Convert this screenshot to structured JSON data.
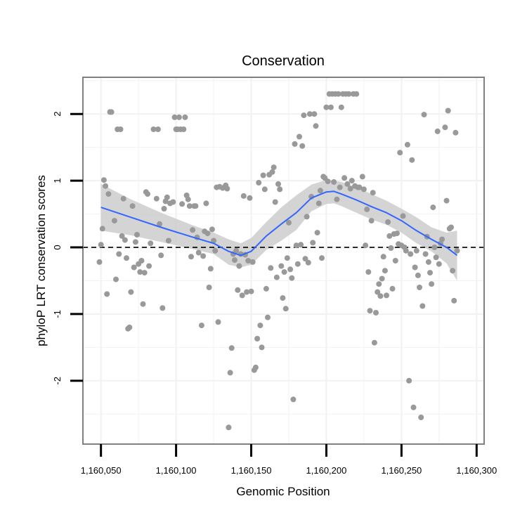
{
  "chart_data": {
    "type": "scatter",
    "title": "Conservation",
    "xlabel": "Genomic Position",
    "ylabel": "phyloP LRT conservation scores",
    "xlim": [
      1160038,
      1160305
    ],
    "ylim": [
      -2.95,
      2.55
    ],
    "x_ticks": [
      {
        "value": 1160050,
        "label": "1,160,050"
      },
      {
        "value": 1160100,
        "label": "1,160,100"
      },
      {
        "value": 1160150,
        "label": "1,160,150"
      },
      {
        "value": 1160200,
        "label": "1,160,200"
      },
      {
        "value": 1160250,
        "label": "1,160,250"
      },
      {
        "value": 1160300,
        "label": "1,160,300"
      }
    ],
    "y_ticks": [
      {
        "value": 2,
        "label": "2"
      },
      {
        "value": 1,
        "label": "1"
      },
      {
        "value": 0,
        "label": "0"
      },
      {
        "value": -1,
        "label": "-1"
      },
      {
        "value": -2,
        "label": "-2"
      }
    ],
    "grid": true,
    "reference_line": {
      "y": 0,
      "style": "dashed"
    },
    "points": [
      {
        "x": 1160049,
        "y": -0.22
      },
      {
        "x": 1160050,
        "y": 0.04
      },
      {
        "x": 1160051,
        "y": 0.28
      },
      {
        "x": 1160052,
        "y": 1.01
      },
      {
        "x": 1160053,
        "y": 0.92
      },
      {
        "x": 1160054,
        "y": -0.7
      },
      {
        "x": 1160055,
        "y": 0.8
      },
      {
        "x": 1160056,
        "y": 2.03
      },
      {
        "x": 1160057,
        "y": 2.03
      },
      {
        "x": 1160059,
        "y": 0.4
      },
      {
        "x": 1160060,
        "y": -0.48
      },
      {
        "x": 1160061,
        "y": 1.77
      },
      {
        "x": 1160062,
        "y": -0.1
      },
      {
        "x": 1160063,
        "y": 1.77
      },
      {
        "x": 1160064,
        "y": 0.17
      },
      {
        "x": 1160065,
        "y": 0.73
      },
      {
        "x": 1160066,
        "y": 0.11
      },
      {
        "x": 1160067,
        "y": -0.16
      },
      {
        "x": 1160068,
        "y": -1.22
      },
      {
        "x": 1160069,
        "y": -1.2
      },
      {
        "x": 1160070,
        "y": -0.67
      },
      {
        "x": 1160071,
        "y": 0.62
      },
      {
        "x": 1160072,
        "y": -0.3
      },
      {
        "x": 1160073,
        "y": 0.08
      },
      {
        "x": 1160074,
        "y": 0.19
      },
      {
        "x": 1160075,
        "y": -0.25
      },
      {
        "x": 1160076,
        "y": -0.37
      },
      {
        "x": 1160077,
        "y": -0.2
      },
      {
        "x": 1160078,
        "y": -0.85
      },
      {
        "x": 1160079,
        "y": -0.38
      },
      {
        "x": 1160080,
        "y": 0.83
      },
      {
        "x": 1160081,
        "y": 0.8
      },
      {
        "x": 1160082,
        "y": -0.28
      },
      {
        "x": 1160083,
        "y": 0.06
      },
      {
        "x": 1160085,
        "y": 1.77
      },
      {
        "x": 1160087,
        "y": 0.73
      },
      {
        "x": 1160088,
        "y": 1.77
      },
      {
        "x": 1160089,
        "y": 0.35
      },
      {
        "x": 1160090,
        "y": -0.12
      },
      {
        "x": 1160091,
        "y": -0.91
      },
      {
        "x": 1160092,
        "y": 0.58
      },
      {
        "x": 1160093,
        "y": 0.69
      },
      {
        "x": 1160094,
        "y": 0.75
      },
      {
        "x": 1160095,
        "y": 0.1
      },
      {
        "x": 1160096,
        "y": 0.66
      },
      {
        "x": 1160098,
        "y": 0.68
      },
      {
        "x": 1160099,
        "y": 1.95
      },
      {
        "x": 1160100,
        "y": 1.77
      },
      {
        "x": 1160101,
        "y": 1.77
      },
      {
        "x": 1160102,
        "y": 1.95
      },
      {
        "x": 1160103,
        "y": 1.77
      },
      {
        "x": 1160104,
        "y": 0.65
      },
      {
        "x": 1160105,
        "y": 1.77
      },
      {
        "x": 1160106,
        "y": 1.95
      },
      {
        "x": 1160107,
        "y": 0.78
      },
      {
        "x": 1160108,
        "y": 0.72
      },
      {
        "x": 1160109,
        "y": 0.62
      },
      {
        "x": 1160110,
        "y": -0.14
      },
      {
        "x": 1160111,
        "y": 0.26
      },
      {
        "x": 1160112,
        "y": 0.62
      },
      {
        "x": 1160113,
        "y": 0.62
      },
      {
        "x": 1160114,
        "y": 0.15
      },
      {
        "x": 1160115,
        "y": -0.08
      },
      {
        "x": 1160117,
        "y": -1.17
      },
      {
        "x": 1160118,
        "y": -0.13
      },
      {
        "x": 1160119,
        "y": 0.24
      },
      {
        "x": 1160120,
        "y": 0.66
      },
      {
        "x": 1160121,
        "y": 0.21
      },
      {
        "x": 1160122,
        "y": -0.6
      },
      {
        "x": 1160123,
        "y": -0.32
      },
      {
        "x": 1160124,
        "y": 0.27
      },
      {
        "x": 1160125,
        "y": 0.1
      },
      {
        "x": 1160126,
        "y": -0.05
      },
      {
        "x": 1160127,
        "y": 0.9
      },
      {
        "x": 1160128,
        "y": -1.12
      },
      {
        "x": 1160129,
        "y": 0.91
      },
      {
        "x": 1160131,
        "y": 0.89
      },
      {
        "x": 1160133,
        "y": 0.93
      },
      {
        "x": 1160134,
        "y": 0.88
      },
      {
        "x": 1160135,
        "y": -2.7
      },
      {
        "x": 1160136,
        "y": -1.88
      },
      {
        "x": 1160137,
        "y": -1.51
      },
      {
        "x": 1160138,
        "y": -0.1
      },
      {
        "x": 1160139,
        "y": -0.19
      },
      {
        "x": 1160140,
        "y": -0.05
      },
      {
        "x": 1160141,
        "y": -0.64
      },
      {
        "x": 1160142,
        "y": -0.28
      },
      {
        "x": 1160143,
        "y": -0.1
      },
      {
        "x": 1160144,
        "y": -0.72
      },
      {
        "x": 1160145,
        "y": 0.77
      },
      {
        "x": 1160146,
        "y": -0.11
      },
      {
        "x": 1160147,
        "y": -0.67
      },
      {
        "x": 1160148,
        "y": -0.2
      },
      {
        "x": 1160149,
        "y": 0.74
      },
      {
        "x": 1160150,
        "y": -0.66
      },
      {
        "x": 1160151,
        "y": -0.22
      },
      {
        "x": 1160152,
        "y": -1.84
      },
      {
        "x": 1160153,
        "y": -1.8
      },
      {
        "x": 1160154,
        "y": -1.37
      },
      {
        "x": 1160155,
        "y": 0.97
      },
      {
        "x": 1160156,
        "y": -1.17
      },
      {
        "x": 1160157,
        "y": -1.5
      },
      {
        "x": 1160158,
        "y": 1.08
      },
      {
        "x": 1160159,
        "y": 0.87
      },
      {
        "x": 1160160,
        "y": -0.62
      },
      {
        "x": 1160161,
        "y": -1.05
      },
      {
        "x": 1160162,
        "y": 1.09
      },
      {
        "x": 1160163,
        "y": -0.31
      },
      {
        "x": 1160164,
        "y": 1.13
      },
      {
        "x": 1160165,
        "y": 1.2
      },
      {
        "x": 1160166,
        "y": 0.68
      },
      {
        "x": 1160167,
        "y": -0.45
      },
      {
        "x": 1160168,
        "y": 0.95
      },
      {
        "x": 1160169,
        "y": 0.87
      },
      {
        "x": 1160170,
        "y": -0.28
      },
      {
        "x": 1160171,
        "y": -0.76
      },
      {
        "x": 1160172,
        "y": -0.37
      },
      {
        "x": 1160173,
        "y": -0.92
      },
      {
        "x": 1160174,
        "y": -0.16
      },
      {
        "x": 1160175,
        "y": 0.37
      },
      {
        "x": 1160176,
        "y": -0.33
      },
      {
        "x": 1160177,
        "y": -0.46
      },
      {
        "x": 1160178,
        "y": -2.28
      },
      {
        "x": 1160179,
        "y": 1.55
      },
      {
        "x": 1160180,
        "y": 0.03
      },
      {
        "x": 1160181,
        "y": -0.25
      },
      {
        "x": 1160182,
        "y": 1.66
      },
      {
        "x": 1160183,
        "y": 0.04
      },
      {
        "x": 1160184,
        "y": 1.52
      },
      {
        "x": 1160185,
        "y": 1.98
      },
      {
        "x": 1160186,
        "y": -0.17
      },
      {
        "x": 1160187,
        "y": 0.46
      },
      {
        "x": 1160188,
        "y": -0.23
      },
      {
        "x": 1160189,
        "y": 2.0
      },
      {
        "x": 1160190,
        "y": 0.76
      },
      {
        "x": 1160191,
        "y": 0.07
      },
      {
        "x": 1160192,
        "y": 2.0
      },
      {
        "x": 1160193,
        "y": 1.82
      },
      {
        "x": 1160194,
        "y": 0.22
      },
      {
        "x": 1160195,
        "y": 0.66
      },
      {
        "x": 1160196,
        "y": 0.85
      },
      {
        "x": 1160197,
        "y": -0.16
      },
      {
        "x": 1160198,
        "y": 1.06
      },
      {
        "x": 1160199,
        "y": 1.04
      },
      {
        "x": 1160200,
        "y": 2.1
      },
      {
        "x": 1160201,
        "y": 0.99
      },
      {
        "x": 1160202,
        "y": 2.3
      },
      {
        "x": 1160203,
        "y": 2.1
      },
      {
        "x": 1160204,
        "y": 2.3
      },
      {
        "x": 1160205,
        "y": 0.98
      },
      {
        "x": 1160206,
        "y": 2.3
      },
      {
        "x": 1160207,
        "y": 0.72
      },
      {
        "x": 1160208,
        "y": 2.3
      },
      {
        "x": 1160209,
        "y": 0.9
      },
      {
        "x": 1160210,
        "y": 2.1
      },
      {
        "x": 1160211,
        "y": 2.3
      },
      {
        "x": 1160212,
        "y": 1.04
      },
      {
        "x": 1160213,
        "y": 2.3
      },
      {
        "x": 1160214,
        "y": 0.95
      },
      {
        "x": 1160215,
        "y": 2.3
      },
      {
        "x": 1160216,
        "y": 0.88
      },
      {
        "x": 1160217,
        "y": 1.0
      },
      {
        "x": 1160218,
        "y": 2.3
      },
      {
        "x": 1160219,
        "y": 0.92
      },
      {
        "x": 1160220,
        "y": 2.3
      },
      {
        "x": 1160221,
        "y": 0.9
      },
      {
        "x": 1160222,
        "y": 0.9
      },
      {
        "x": 1160224,
        "y": 1.06
      },
      {
        "x": 1160225,
        "y": 0.87
      },
      {
        "x": 1160226,
        "y": 0.03
      },
      {
        "x": 1160227,
        "y": 0.57
      },
      {
        "x": 1160228,
        "y": -0.37
      },
      {
        "x": 1160229,
        "y": -0.95
      },
      {
        "x": 1160230,
        "y": 0.4
      },
      {
        "x": 1160231,
        "y": 0.82
      },
      {
        "x": 1160232,
        "y": -1.43
      },
      {
        "x": 1160233,
        "y": -0.98
      },
      {
        "x": 1160234,
        "y": -0.67
      },
      {
        "x": 1160235,
        "y": -0.55
      },
      {
        "x": 1160236,
        "y": -0.73
      },
      {
        "x": 1160237,
        "y": -0.47
      },
      {
        "x": 1160238,
        "y": -0.14
      },
      {
        "x": 1160239,
        "y": -0.35
      },
      {
        "x": 1160240,
        "y": -0.72
      },
      {
        "x": 1160241,
        "y": 0.38
      },
      {
        "x": 1160242,
        "y": 0.17
      },
      {
        "x": 1160243,
        "y": -0.01
      },
      {
        "x": 1160244,
        "y": -0.62
      },
      {
        "x": 1160245,
        "y": 0.2
      },
      {
        "x": 1160246,
        "y": -0.2
      },
      {
        "x": 1160247,
        "y": 0.21
      },
      {
        "x": 1160248,
        "y": 0.05
      },
      {
        "x": 1160249,
        "y": 1.42
      },
      {
        "x": 1160250,
        "y": 0.03
      },
      {
        "x": 1160251,
        "y": 0.47
      },
      {
        "x": 1160252,
        "y": 0.0
      },
      {
        "x": 1160253,
        "y": -0.05
      },
      {
        "x": 1160254,
        "y": 1.54
      },
      {
        "x": 1160255,
        "y": -2.0
      },
      {
        "x": 1160256,
        "y": -0.1
      },
      {
        "x": 1160257,
        "y": 1.31
      },
      {
        "x": 1160258,
        "y": -2.4
      },
      {
        "x": 1160259,
        "y": -0.3
      },
      {
        "x": 1160260,
        "y": -0.05
      },
      {
        "x": 1160261,
        "y": -0.42
      },
      {
        "x": 1160262,
        "y": -0.6
      },
      {
        "x": 1160263,
        "y": -2.55
      },
      {
        "x": 1160264,
        "y": -0.88
      },
      {
        "x": 1160265,
        "y": 1.99
      },
      {
        "x": 1160266,
        "y": -0.1
      },
      {
        "x": 1160267,
        "y": 0.16
      },
      {
        "x": 1160268,
        "y": -0.22
      },
      {
        "x": 1160269,
        "y": -0.38
      },
      {
        "x": 1160270,
        "y": -0.55
      },
      {
        "x": 1160271,
        "y": 0.6
      },
      {
        "x": 1160272,
        "y": 0.0
      },
      {
        "x": 1160273,
        "y": -0.15
      },
      {
        "x": 1160274,
        "y": 1.74
      },
      {
        "x": 1160275,
        "y": -0.25
      },
      {
        "x": 1160276,
        "y": 0.06
      },
      {
        "x": 1160277,
        "y": 0.12
      },
      {
        "x": 1160279,
        "y": 1.8
      },
      {
        "x": 1160280,
        "y": 0.7
      },
      {
        "x": 1160281,
        "y": 2.05
      },
      {
        "x": 1160282,
        "y": 0.28
      },
      {
        "x": 1160283,
        "y": 0.3
      },
      {
        "x": 1160284,
        "y": -0.35
      },
      {
        "x": 1160285,
        "y": -0.8
      },
      {
        "x": 1160286,
        "y": 1.72
      },
      {
        "x": 1160287,
        "y": -0.05
      }
    ],
    "smooth_fit": {
      "x": [
        1160050,
        1160070,
        1160090,
        1160110,
        1160125,
        1160135,
        1160143,
        1160150,
        1160160,
        1160170,
        1160180,
        1160190,
        1160200,
        1160205,
        1160210,
        1160220,
        1160230,
        1160240,
        1160250,
        1160260,
        1160270,
        1160280,
        1160287
      ],
      "y": [
        0.6,
        0.45,
        0.3,
        0.16,
        0.06,
        -0.06,
        -0.12,
        -0.06,
        0.17,
        0.35,
        0.52,
        0.74,
        0.83,
        0.84,
        0.8,
        0.71,
        0.61,
        0.52,
        0.4,
        0.25,
        0.12,
        0.0,
        -0.12
      ],
      "ci_upper": [
        0.95,
        0.72,
        0.52,
        0.34,
        0.22,
        0.12,
        0.06,
        0.14,
        0.38,
        0.6,
        0.78,
        0.94,
        1.01,
        1.0,
        0.98,
        0.9,
        0.8,
        0.7,
        0.58,
        0.45,
        0.3,
        0.22,
        0.25
      ],
      "ci_lower": [
        0.25,
        0.18,
        0.08,
        -0.02,
        -0.1,
        -0.26,
        -0.3,
        -0.26,
        -0.04,
        0.1,
        0.26,
        0.54,
        0.65,
        0.66,
        0.62,
        0.52,
        0.42,
        0.34,
        0.22,
        0.06,
        -0.06,
        -0.24,
        -0.5
      ]
    },
    "colors": {
      "points": "#999999",
      "smooth_line": "#3366FF",
      "ribbon": "#CCCCCC",
      "grid": "#F2F2F2",
      "panel_border": "#808080",
      "reference_line": "#000000"
    }
  }
}
